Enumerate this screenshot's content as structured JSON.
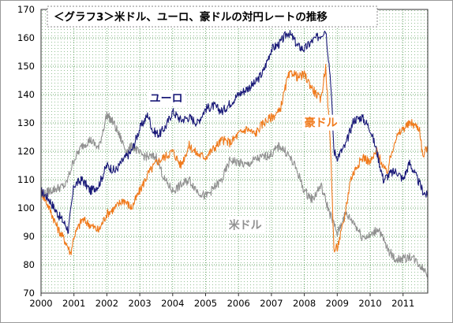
{
  "chart_data": {
    "type": "line",
    "title": "＜グラフ3＞米ドル、ユーロ、豪ドルの対円レートの推移",
    "xlabel": "",
    "ylabel": "",
    "x_ticks": [
      "2000",
      "2001",
      "2002",
      "2003",
      "2004",
      "2005",
      "2006",
      "2007",
      "2008",
      "2009",
      "2010",
      "2011"
    ],
    "y_ticks": [
      70,
      80,
      90,
      100,
      110,
      120,
      130,
      140,
      150,
      160,
      170
    ],
    "xlim": [
      2000.0,
      2011.75
    ],
    "ylim": [
      70,
      170
    ],
    "grid": true,
    "colors": {
      "plot_background": "#ffffff",
      "grid_dots": "#3f8f3f"
    },
    "series": [
      {
        "name": "ユーロ",
        "color": "#1a1a78",
        "x": [
          2000.0,
          2000.25,
          2000.5,
          2000.75,
          2000.83,
          2001.0,
          2001.25,
          2001.5,
          2001.75,
          2002.0,
          2002.25,
          2002.5,
          2002.75,
          2003.0,
          2003.25,
          2003.4,
          2003.6,
          2003.8,
          2004.0,
          2004.25,
          2004.5,
          2004.75,
          2005.0,
          2005.25,
          2005.5,
          2005.75,
          2006.0,
          2006.25,
          2006.5,
          2006.75,
          2007.0,
          2007.25,
          2007.5,
          2007.65,
          2007.8,
          2008.0,
          2008.25,
          2008.5,
          2008.65,
          2008.8,
          2008.9,
          2009.0,
          2009.25,
          2009.5,
          2009.75,
          2010.0,
          2010.2,
          2010.4,
          2010.6,
          2010.8,
          2011.0,
          2011.2,
          2011.4,
          2011.6,
          2011.75
        ],
        "y": [
          106,
          103,
          98,
          94,
          92,
          108,
          110,
          106,
          108,
          115,
          113,
          117,
          120,
          128,
          133,
          127,
          126,
          129,
          134,
          131,
          132,
          130,
          135,
          136,
          134,
          137,
          140,
          142,
          144,
          148,
          156,
          158,
          162,
          160,
          157,
          156,
          159,
          161,
          163,
          145,
          120,
          118,
          122,
          131,
          132,
          128,
          120,
          110,
          112,
          113,
          110,
          116,
          111,
          106,
          104
        ],
        "label": {
          "text": "ユーロ",
          "color": "#1a1a78",
          "x": 2003.3,
          "y": 137.3
        }
      },
      {
        "name": "豪ドル",
        "color": "#f07a1c",
        "x": [
          2000.0,
          2000.25,
          2000.5,
          2000.75,
          2000.9,
          2001.0,
          2001.25,
          2001.5,
          2001.75,
          2002.0,
          2002.25,
          2002.5,
          2002.75,
          2003.0,
          2003.25,
          2003.5,
          2003.75,
          2004.0,
          2004.25,
          2004.5,
          2004.75,
          2005.0,
          2005.25,
          2005.5,
          2005.75,
          2006.0,
          2006.25,
          2006.5,
          2006.75,
          2007.0,
          2007.25,
          2007.5,
          2007.65,
          2007.8,
          2008.0,
          2008.25,
          2008.5,
          2008.65,
          2008.8,
          2008.9,
          2009.0,
          2009.2,
          2009.4,
          2009.6,
          2009.8,
          2010.0,
          2010.2,
          2010.5,
          2010.75,
          2011.0,
          2011.25,
          2011.5,
          2011.6,
          2011.75
        ],
        "y": [
          106,
          100,
          93,
          88,
          84,
          90,
          96,
          94,
          92,
          98,
          100,
          103,
          100,
          106,
          112,
          116,
          118,
          120,
          115,
          122,
          119,
          118,
          121,
          124,
          123,
          126,
          128,
          126,
          130,
          132,
          134,
          146,
          148,
          146,
          147,
          142,
          138,
          150,
          120,
          85,
          86,
          95,
          110,
          115,
          118,
          116,
          120,
          112,
          124,
          128,
          130,
          128,
          118,
          122
        ],
        "label": {
          "text": "豪ドル",
          "color": "#f07a1c",
          "x": 2008.0,
          "y": 128.7
        }
      },
      {
        "name": "米ドル",
        "color": "#909090",
        "x": [
          2000.0,
          2000.25,
          2000.5,
          2000.75,
          2001.0,
          2001.25,
          2001.5,
          2001.75,
          2002.0,
          2002.2,
          2002.4,
          2002.6,
          2002.8,
          2003.0,
          2003.25,
          2003.5,
          2003.75,
          2004.0,
          2004.25,
          2004.5,
          2004.75,
          2005.0,
          2005.25,
          2005.5,
          2005.75,
          2006.0,
          2006.25,
          2006.5,
          2006.75,
          2007.0,
          2007.25,
          2007.5,
          2007.75,
          2008.0,
          2008.25,
          2008.5,
          2008.75,
          2009.0,
          2009.25,
          2009.5,
          2009.75,
          2010.0,
          2010.25,
          2010.5,
          2010.75,
          2011.0,
          2011.25,
          2011.5,
          2011.75
        ],
        "y": [
          104,
          106,
          107,
          108,
          117,
          122,
          124,
          121,
          133,
          130,
          125,
          120,
          122,
          119,
          118,
          118,
          110,
          106,
          108,
          110,
          106,
          104,
          107,
          110,
          117,
          116,
          115,
          117,
          118,
          119,
          122,
          119,
          114,
          106,
          103,
          108,
          99,
          91,
          98,
          95,
          90,
          90,
          93,
          86,
          82,
          82,
          83,
          80,
          77
        ],
        "label": {
          "text": "米ドル",
          "color": "#909090",
          "x": 2005.7,
          "y": 92.6
        }
      }
    ]
  }
}
